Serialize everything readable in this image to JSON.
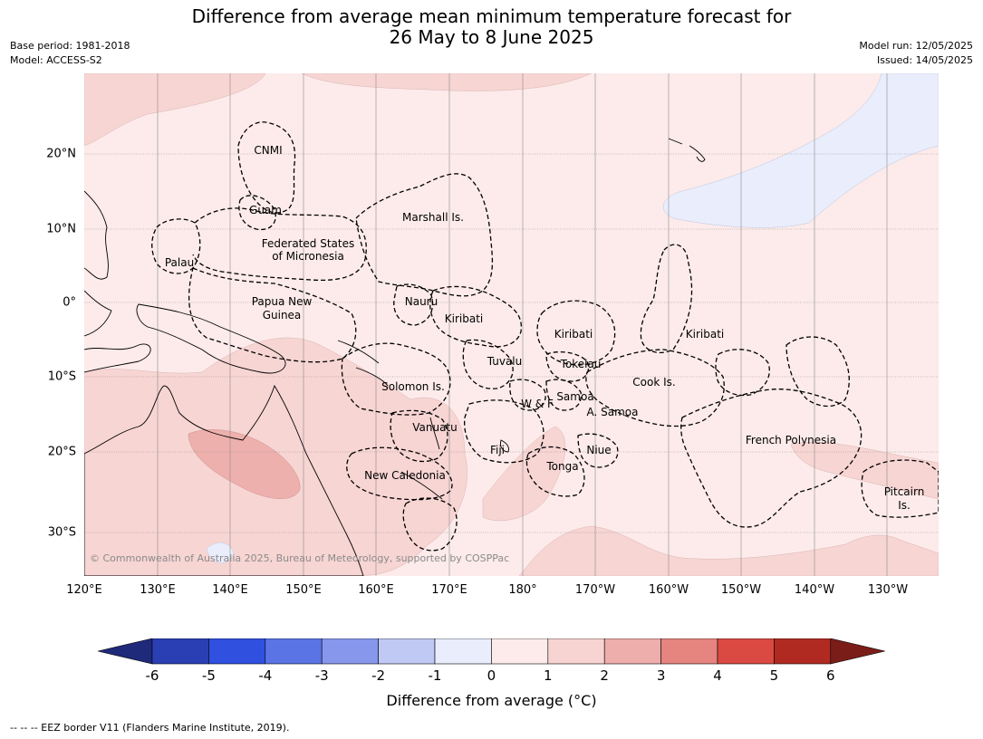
{
  "title_line1": "Difference from average mean minimum temperature forecast for",
  "title_line2": "26 May to 8 June 2025",
  "meta": {
    "base_period": "Base period: 1981-2018",
    "model": "Model: ACCESS-S2",
    "model_run": "Model run: 12/05/2025",
    "issued": "Issued: 14/05/2025"
  },
  "map": {
    "lon_ticks": [
      "120°E",
      "130°E",
      "140°E",
      "150°E",
      "160°E",
      "170°E",
      "180°",
      "170°W",
      "160°W",
      "150°W",
      "140°W",
      "130°W"
    ],
    "lat_ticks": [
      "20°N",
      "10°N",
      "0°",
      "10°S",
      "20°S",
      "30°S"
    ],
    "labels": [
      {
        "id": "cnmi",
        "text": "CNMI"
      },
      {
        "id": "guam",
        "text": "Guam"
      },
      {
        "id": "marshall",
        "text": "Marshall Is."
      },
      {
        "id": "fsm1",
        "text": "Federated States"
      },
      {
        "id": "fsm2",
        "text": "of Micronesia"
      },
      {
        "id": "palau",
        "text": "Palau"
      },
      {
        "id": "png1",
        "text": "Papua New"
      },
      {
        "id": "png2",
        "text": "Guinea"
      },
      {
        "id": "nauru",
        "text": "Nauru"
      },
      {
        "id": "kiribati_w",
        "text": "Kiribati"
      },
      {
        "id": "kiribati_c",
        "text": "Kiribati"
      },
      {
        "id": "kiribati_e",
        "text": "Kiribati"
      },
      {
        "id": "tuvalu",
        "text": "Tuvalu"
      },
      {
        "id": "tokelau",
        "text": "Tokelau"
      },
      {
        "id": "cook",
        "text": "Cook Is."
      },
      {
        "id": "solomon",
        "text": "Solomon Is."
      },
      {
        "id": "samoa",
        "text": "Samoa"
      },
      {
        "id": "wf",
        "text": "W & F"
      },
      {
        "id": "asamoa",
        "text": "A. Samoa"
      },
      {
        "id": "vanuatu",
        "text": "Vanuatu"
      },
      {
        "id": "fiji",
        "text": "Fiji"
      },
      {
        "id": "niue",
        "text": "Niue"
      },
      {
        "id": "frpoly",
        "text": "French Polynesia"
      },
      {
        "id": "tonga",
        "text": "Tonga"
      },
      {
        "id": "newcal",
        "text": "New Caledonia"
      },
      {
        "id": "pitcairn1",
        "text": "Pitcairn"
      },
      {
        "id": "pitcairn2",
        "text": "Is."
      }
    ],
    "copyright": "© Commonwealth of Australia 2025, Bureau of Meteorology, supported by COSPPac"
  },
  "colorbar": {
    "ticks": [
      "-6",
      "-5",
      "-4",
      "-3",
      "-2",
      "-1",
      "0",
      "1",
      "2",
      "3",
      "4",
      "5",
      "6"
    ],
    "colors": [
      "#1f2a7a",
      "#2a3fb4",
      "#3050e0",
      "#5a74e6",
      "#8797ec",
      "#c0c8f4",
      "#e9edfc",
      "#fcebea",
      "#f7d3d1",
      "#eeaeab",
      "#e6847f",
      "#da4a42",
      "#b02a22",
      "#7a1d18"
    ],
    "label": "Difference from average (°C)"
  },
  "footnote": "--  --  -- EEZ border V11 (Flanders Marine Institute, 2019)."
}
